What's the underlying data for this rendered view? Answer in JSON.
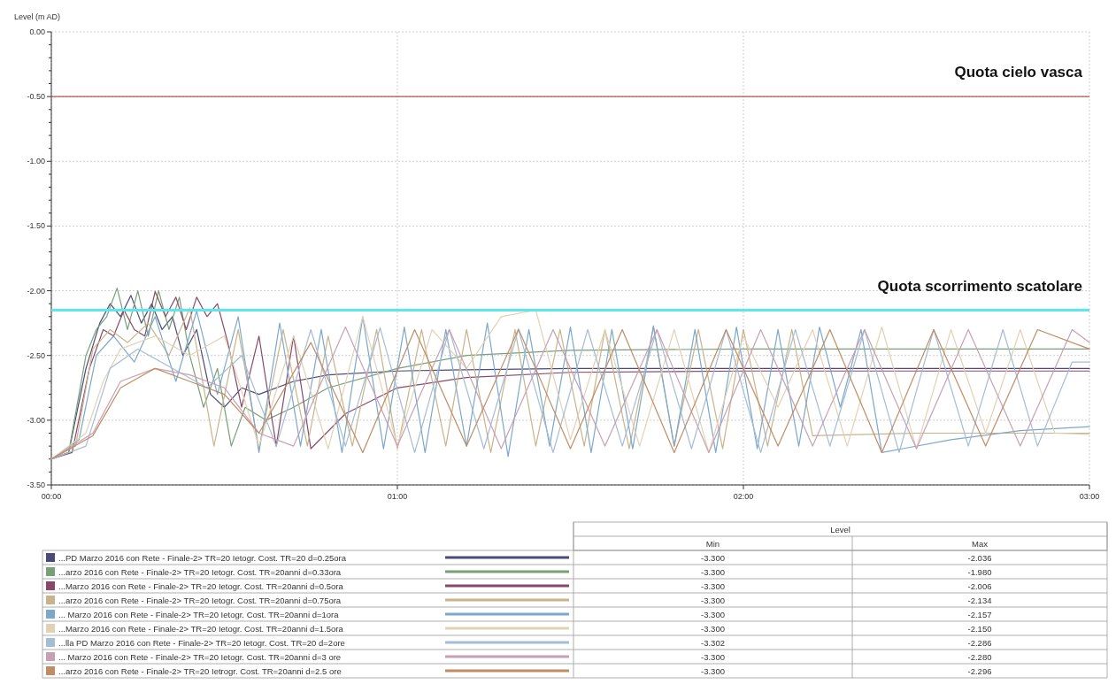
{
  "chart_data": {
    "type": "line",
    "ylabel": "Level (m AD)",
    "xlim": [
      0,
      3
    ],
    "ylim": [
      -3.5,
      0
    ],
    "xticks": [
      {
        "value": 0,
        "label": "00:00"
      },
      {
        "value": 1,
        "label": "01:00"
      },
      {
        "value": 2,
        "label": "02:00"
      },
      {
        "value": 3,
        "label": "03:00"
      }
    ],
    "yticks": [
      {
        "value": 0,
        "label": "0.00"
      },
      {
        "value": -0.1,
        "label": null
      },
      {
        "value": -0.2,
        "label": null
      },
      {
        "value": -0.3,
        "label": null
      },
      {
        "value": -0.4,
        "label": null
      },
      {
        "value": -0.5,
        "label": "-0.50"
      },
      {
        "value": -0.6,
        "label": null
      },
      {
        "value": -0.7,
        "label": null
      },
      {
        "value": -0.8,
        "label": null
      },
      {
        "value": -0.9,
        "label": null
      },
      {
        "value": -1,
        "label": "-1.00"
      },
      {
        "value": -1.1,
        "label": null
      },
      {
        "value": -1.2,
        "label": null
      },
      {
        "value": -1.3,
        "label": null
      },
      {
        "value": -1.4,
        "label": null
      },
      {
        "value": -1.5,
        "label": "-1.50"
      },
      {
        "value": -1.6,
        "label": null
      },
      {
        "value": -1.7,
        "label": null
      },
      {
        "value": -1.8,
        "label": null
      },
      {
        "value": -1.9,
        "label": null
      },
      {
        "value": -2,
        "label": "-2.00"
      },
      {
        "value": -2.1,
        "label": null
      },
      {
        "value": -2.2,
        "label": null
      },
      {
        "value": -2.3,
        "label": null
      },
      {
        "value": -2.4,
        "label": null
      },
      {
        "value": -2.5,
        "label": "-2.50"
      },
      {
        "value": -2.6,
        "label": null
      },
      {
        "value": -2.7,
        "label": null
      },
      {
        "value": -2.8,
        "label": null
      },
      {
        "value": -2.9,
        "label": null
      },
      {
        "value": -3,
        "label": "-3.00"
      },
      {
        "value": -3.1,
        "label": null
      },
      {
        "value": -3.2,
        "label": null
      },
      {
        "value": -3.3,
        "label": null
      },
      {
        "value": -3.4,
        "label": null
      },
      {
        "value": -3.5,
        "label": "-3.50"
      }
    ],
    "grid": true,
    "legend": "bottom",
    "marker": "none",
    "line_style": "solid",
    "ref_lines": [
      {
        "axis": "y",
        "value": -0.5,
        "label": "Quota cielo vasca",
        "color": "#b5554f"
      },
      {
        "axis": "y",
        "value": -2.15,
        "label": "Quota scorrimento scatolare",
        "color": "#5ce6ee"
      }
    ],
    "annotations": [
      "Level",
      "Min",
      "Max",
      "-3.300",
      "-2.036",
      "-3.300",
      "-1.980",
      "-3.300",
      "-2.006",
      "-3.300",
      "-2.134",
      "-3.300",
      "-2.157",
      "-3.300",
      "-2.150",
      "-3.302",
      "-2.286",
      "-3.300",
      "-2.280",
      "-3.300",
      "-2.296"
    ],
    "series": [
      {
        "name": "...PD Marzo 2016 con Rete - Finale-2> TR=20 Ietogr. Cost. TR=20 d=0.25ora",
        "color": "#4b4a78",
        "x": [
          0,
          0.05,
          0.1,
          0.14,
          0.17,
          0.2,
          0.23,
          0.26,
          0.29,
          0.32,
          0.35,
          0.38,
          0.42,
          0.46,
          0.5,
          0.55,
          0.6,
          0.7,
          0.8,
          1,
          1.2,
          1.5,
          2,
          2.5,
          3
        ],
        "values": [
          -3.3,
          -3.25,
          -2.6,
          -2.25,
          -2.1,
          -2.2,
          -2.036,
          -2.25,
          -2.1,
          -2.3,
          -2.2,
          -2.5,
          -2.3,
          -2.8,
          -2.9,
          -2.75,
          -2.8,
          -2.7,
          -2.65,
          -2.62,
          -2.61,
          -2.6,
          -2.6,
          -2.6,
          -2.6
        ]
      },
      {
        "name": "...arzo 2016 con Rete - Finale-2> TR=20 Ietogr. Cost. TR=20anni d=0.33ora",
        "color": "#78a078",
        "x": [
          0,
          0.05,
          0.1,
          0.13,
          0.16,
          0.19,
          0.22,
          0.25,
          0.28,
          0.31,
          0.34,
          0.37,
          0.4,
          0.44,
          0.48,
          0.52,
          0.56,
          0.62,
          0.7,
          0.8,
          1,
          1.2,
          1.5,
          2,
          3
        ],
        "values": [
          -3.3,
          -3.25,
          -2.5,
          -2.3,
          -2.2,
          -1.98,
          -2.3,
          -2.0,
          -2.35,
          -2.0,
          -2.3,
          -2.05,
          -2.5,
          -2.9,
          -2.6,
          -3.2,
          -2.9,
          -3.0,
          -2.9,
          -2.75,
          -2.6,
          -2.5,
          -2.46,
          -2.45,
          -2.45
        ]
      },
      {
        "name": "...Marzo 2016 con Rete - Finale-2> TR=20 Ietogr. Cost. TR=20anni d=0.5ora",
        "color": "#8a4868",
        "x": [
          0,
          0.06,
          0.11,
          0.15,
          0.18,
          0.21,
          0.24,
          0.27,
          0.3,
          0.33,
          0.36,
          0.39,
          0.42,
          0.45,
          0.48,
          0.51,
          0.55,
          0.6,
          0.65,
          0.7,
          0.75,
          0.85,
          1,
          1.2,
          1.5,
          2,
          3
        ],
        "values": [
          -3.3,
          -3.25,
          -2.6,
          -2.3,
          -2.35,
          -2.15,
          -2.3,
          -2.35,
          -2.006,
          -2.2,
          -2.05,
          -2.3,
          -2.05,
          -2.2,
          -2.1,
          -2.4,
          -2.9,
          -2.35,
          -3.2,
          -2.35,
          -3.22,
          -2.95,
          -2.75,
          -2.67,
          -2.63,
          -2.62,
          -2.62
        ]
      },
      {
        "name": "...arzo 2016 con Rete - Finale-2> TR=20 Ietogr. Cost. TR=20anni d=0.75ora",
        "color": "#c8b48c",
        "x": [
          0,
          0.07,
          0.12,
          0.17,
          0.22,
          0.28,
          0.34,
          0.4,
          0.47,
          0.54,
          0.6,
          0.67,
          0.74,
          0.8,
          0.87,
          0.94,
          1,
          1.07,
          1.14,
          1.2,
          1.27,
          1.34,
          1.4,
          1.47,
          1.54,
          1.6,
          1.67,
          1.74,
          1.8,
          1.87,
          1.94,
          2,
          2.07,
          2.14,
          2.2,
          2.5,
          3
        ],
        "values": [
          -3.3,
          -3.2,
          -2.45,
          -2.3,
          -2.4,
          -2.25,
          -2.5,
          -2.134,
          -3.2,
          -2.3,
          -3.22,
          -2.3,
          -3.2,
          -2.35,
          -3.2,
          -2.3,
          -3.22,
          -2.3,
          -3.2,
          -2.3,
          -3.25,
          -2.3,
          -3.2,
          -2.3,
          -3.2,
          -2.3,
          -3.22,
          -2.28,
          -3.2,
          -2.3,
          -3.22,
          -2.3,
          -3.2,
          -2.3,
          -3.12,
          -3.1,
          -3.1
        ]
      },
      {
        "name": "... Marzo 2016 con Rete - Finale-2> TR=20 Ietogr. Cost. TR=20anni d=1ora",
        "color": "#7ca8cc",
        "x": [
          0,
          0.08,
          0.13,
          0.18,
          0.24,
          0.3,
          0.36,
          0.42,
          0.48,
          0.54,
          0.6,
          0.66,
          0.72,
          0.78,
          0.84,
          0.9,
          0.96,
          1.02,
          1.08,
          1.14,
          1.2,
          1.26,
          1.32,
          1.38,
          1.44,
          1.5,
          1.56,
          1.62,
          1.68,
          1.74,
          1.8,
          1.86,
          1.92,
          1.98,
          2.04,
          2.1,
          2.16,
          2.22,
          2.28,
          2.34,
          2.4,
          2.6,
          2.8,
          3
        ],
        "values": [
          -3.3,
          -3.15,
          -2.5,
          -2.35,
          -2.55,
          -2.2,
          -2.7,
          -2.157,
          -2.8,
          -2.2,
          -3.25,
          -2.25,
          -3.2,
          -2.3,
          -3.25,
          -2.2,
          -3.22,
          -2.28,
          -3.25,
          -2.3,
          -3.2,
          -2.25,
          -3.28,
          -2.3,
          -3.2,
          -2.28,
          -3.25,
          -2.3,
          -3.22,
          -2.27,
          -3.2,
          -2.3,
          -3.25,
          -2.28,
          -3.22,
          -2.3,
          -3.2,
          -2.28,
          -2.9,
          -2.3,
          -3.25,
          -3.15,
          -3.08,
          -3.05
        ]
      },
      {
        "name": "...Marzo 2016 con Rete - Finale-2> TR=20 Ietogr. Cost. TR=20anni d=1.5ora",
        "color": "#e2d2b4",
        "x": [
          0,
          0.1,
          0.15,
          0.2,
          0.3,
          0.4,
          0.5,
          0.6,
          0.7,
          0.8,
          0.9,
          1,
          1.1,
          1.2,
          1.3,
          1.4,
          1.5,
          1.6,
          1.7,
          1.8,
          1.9,
          2,
          2.1,
          2.2,
          2.3,
          2.4,
          2.5,
          2.6,
          2.7,
          2.8,
          2.9,
          3
        ],
        "values": [
          -3.3,
          -3.1,
          -2.7,
          -2.45,
          -2.35,
          -2.5,
          -2.35,
          -3.2,
          -2.35,
          -3.22,
          -2.2,
          -3.2,
          -2.3,
          -2.6,
          -2.2,
          -2.15,
          -3.15,
          -2.3,
          -3.2,
          -2.3,
          -3.25,
          -2.35,
          -2.9,
          -2.3,
          -3.2,
          -2.28,
          -3.22,
          -2.3,
          -3.1,
          -2.3,
          -3.1,
          -3.11
        ]
      },
      {
        "name": "...lla PD Marzo 2016 con Rete - Finale-2> TR=20 Ietogr. Cost. TR=20 d=2ore",
        "color": "#a4bcd4",
        "x": [
          0,
          0.1,
          0.17,
          0.25,
          0.35,
          0.45,
          0.55,
          0.65,
          0.75,
          0.85,
          0.95,
          1.05,
          1.15,
          1.25,
          1.35,
          1.45,
          1.55,
          1.65,
          1.75,
          1.85,
          1.95,
          2.05,
          2.15,
          2.25,
          2.35,
          2.45,
          2.55,
          2.65,
          2.75,
          2.85,
          2.95,
          3
        ],
        "values": [
          -3.302,
          -3.2,
          -2.6,
          -2.45,
          -2.6,
          -2.75,
          -2.5,
          -3.2,
          -2.3,
          -3.2,
          -2.286,
          -3.25,
          -2.3,
          -3.22,
          -2.3,
          -3.25,
          -2.3,
          -3.2,
          -2.3,
          -3.22,
          -2.3,
          -3.25,
          -2.3,
          -3.2,
          -2.3,
          -3.25,
          -2.3,
          -3.2,
          -2.3,
          -3.2,
          -2.55,
          -2.55
        ]
      },
      {
        "name": "... Marzo 2016 con Rete - Finale-2> TR=20 Ietogr. Cost. TR=20anni d=3 ore",
        "color": "#c8a0b4",
        "x": [
          0,
          0.12,
          0.2,
          0.3,
          0.4,
          0.5,
          0.6,
          0.7,
          0.85,
          1,
          1.15,
          1.3,
          1.45,
          1.6,
          1.75,
          1.9,
          2.05,
          2.2,
          2.35,
          2.5,
          2.65,
          2.8,
          2.95,
          3
        ],
        "values": [
          -3.3,
          -3.1,
          -2.7,
          -2.6,
          -2.65,
          -2.75,
          -3.1,
          -3.2,
          -2.28,
          -3.2,
          -2.3,
          -3.22,
          -2.3,
          -3.2,
          -2.3,
          -3.25,
          -2.3,
          -3.2,
          -2.3,
          -3.22,
          -2.3,
          -3.2,
          -2.3,
          -2.4
        ]
      },
      {
        "name": "...arzo 2016 con Rete - Finale-2> TR=20 Ietrogr. Cost. TR=20anni d=2.5 ore",
        "color": "#c08c64",
        "x": [
          0,
          0.12,
          0.2,
          0.3,
          0.4,
          0.5,
          0.6,
          0.75,
          0.9,
          1.05,
          1.2,
          1.35,
          1.5,
          1.65,
          1.8,
          1.95,
          2.1,
          2.25,
          2.4,
          2.55,
          2.7,
          2.85,
          3
        ],
        "values": [
          -3.3,
          -3.12,
          -2.75,
          -2.6,
          -2.7,
          -2.8,
          -3.1,
          -2.4,
          -3.25,
          -2.3,
          -3.2,
          -2.296,
          -3.22,
          -2.3,
          -3.25,
          -2.3,
          -3.2,
          -2.3,
          -3.25,
          -2.3,
          -3.2,
          -2.3,
          -2.45
        ]
      }
    ]
  }
}
